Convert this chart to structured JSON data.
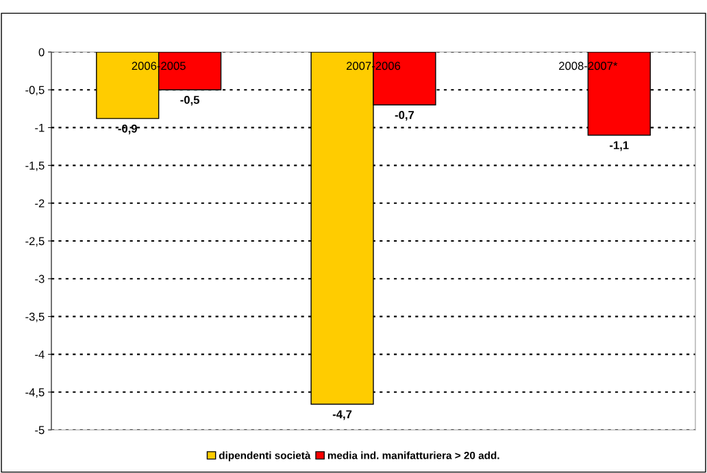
{
  "chart_data": {
    "type": "bar",
    "categories": [
      "2006-2005",
      "2007-2006",
      "2008-2007*"
    ],
    "series": [
      {
        "name": "dipendenti società",
        "color": "#ffcc00",
        "values": [
          -0.88,
          -4.66,
          null
        ],
        "value_labels": [
          "-0,9",
          "-4,7",
          null
        ]
      },
      {
        "name": "media ind. manifatturiera > 20 add.",
        "color": "#ff0000",
        "values": [
          -0.5,
          -0.7,
          -1.1
        ],
        "value_labels": [
          "-0,5",
          "-0,7",
          "-1,1"
        ]
      }
    ],
    "ylim": [
      -5,
      0
    ],
    "yticks": [
      0,
      {
        "value": -0.5,
        "label": "-0,5"
      },
      -1,
      {
        "value": -1.5,
        "label": "-1,5"
      },
      -2,
      {
        "value": -2.5,
        "label": "-2,5"
      },
      -3,
      {
        "value": -3.5,
        "label": "-3,5"
      },
      -4,
      {
        "value": -4.5,
        "label": "-4,5"
      },
      -5
    ],
    "grid": "y",
    "legend": "bottom"
  }
}
